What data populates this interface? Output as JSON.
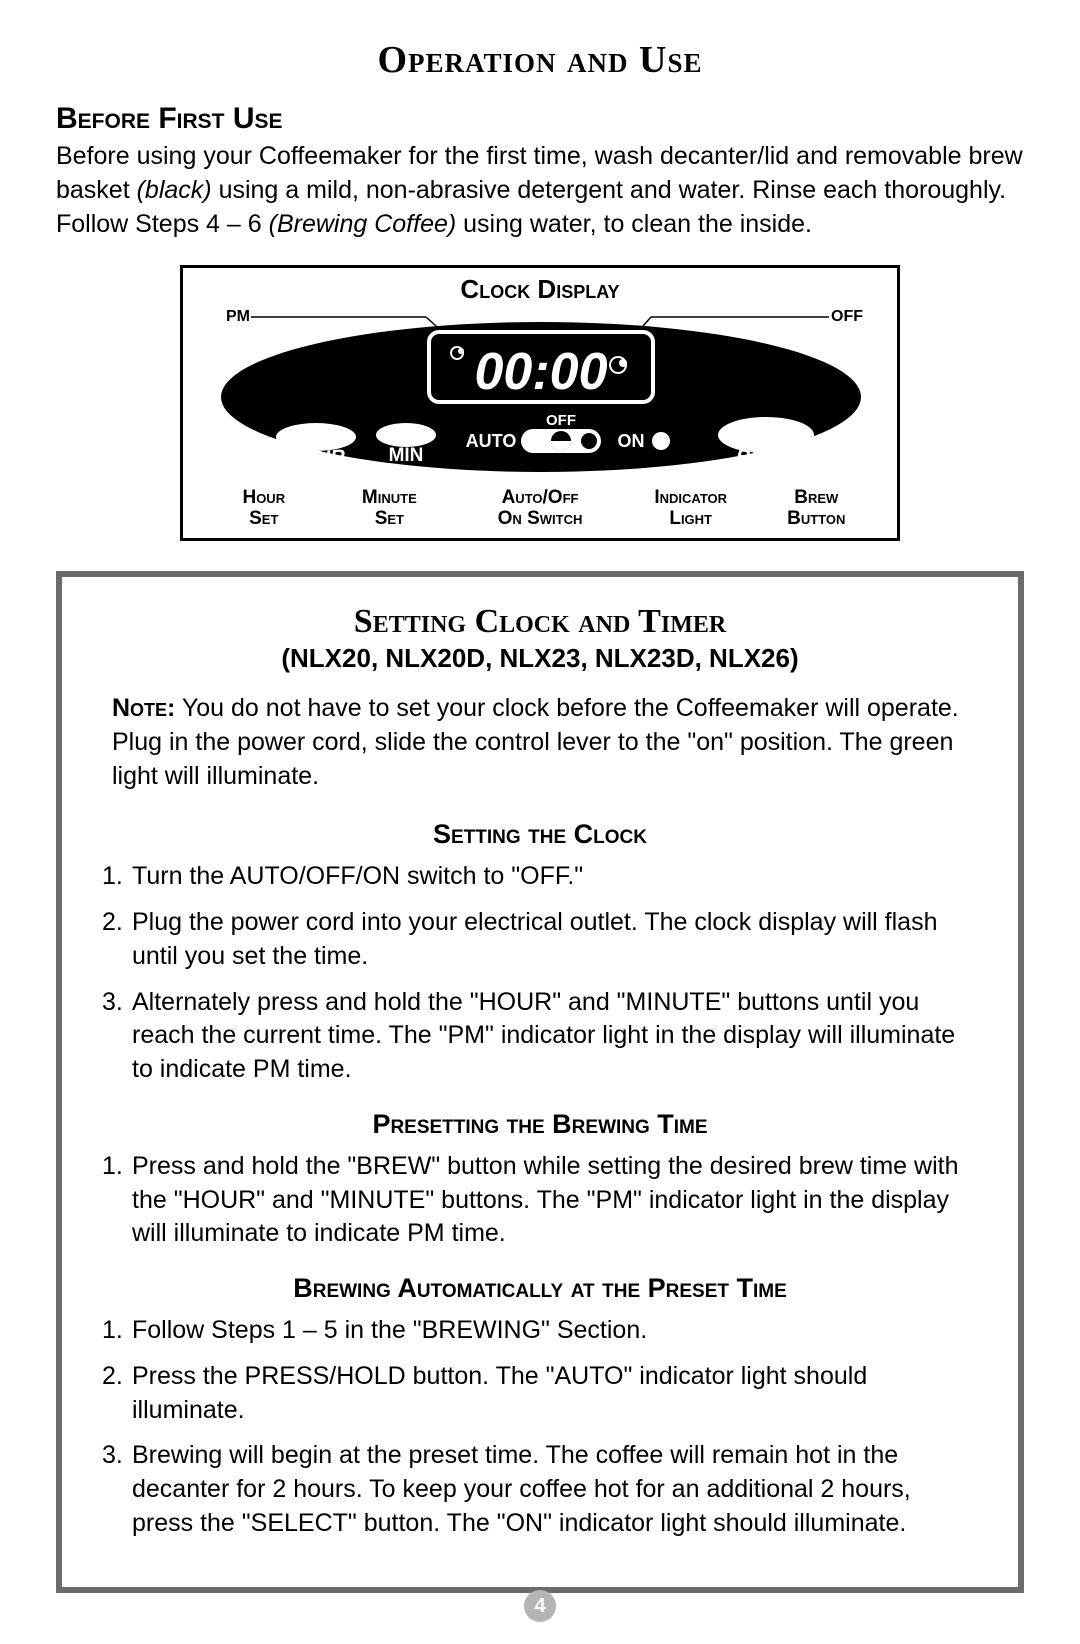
{
  "page_title": "Operation and Use",
  "before_first_use": {
    "heading": "Before First Use",
    "para_part1": "Before using your Coffeemaker for the first time, wash decanter/lid and removable brew basket ",
    "para_ital1": "(black)",
    "para_part2": " using a mild, non-abrasive detergent and water. Rinse each thoroughly. Follow Steps 4 – 6 ",
    "para_ital2": "(Brewing Coffee)",
    "para_part3": " using water, to clean the inside."
  },
  "clock_display": {
    "title": "Clock Display",
    "pm_label": "PM",
    "off_label": "OFF",
    "time_text": "00:00",
    "hour_btn": "HOUR",
    "min_btn": "MIN",
    "auto_btn": "AUTO",
    "switch_off": "OFF",
    "switch_on": "ON",
    "brew_btn": "BREW",
    "labels": {
      "hour_set": "Hour Set",
      "minute_set": "Minute Set",
      "auto_off": "Auto/Off On Switch",
      "indicator": "Indicator Light",
      "brew": "Brew Button"
    },
    "colors": {
      "black": "#000000",
      "white": "#ffffff"
    }
  },
  "setting_box": {
    "title": "Setting Clock and Timer",
    "models": "(NLX20, NLX20D, NLX23, NLX23D, NLX26)",
    "note_label": "Note:",
    "note_text": " You do not have to set your clock before the Coffeemaker will operate. Plug in the power cord, slide the control lever to the \"on\" position. The green light will illuminate.",
    "clock_heading": "Setting the Clock",
    "clock_steps": [
      "Turn the AUTO/OFF/ON switch to \"OFF.\"",
      "Plug the power cord into your electrical outlet. The clock display will flash until you set the time.",
      "Alternately press and hold the \"HOUR\" and \"MINUTE\" buttons until you reach the current time. The \"PM\" indicator light in the display will illuminate to indicate PM time."
    ],
    "preset_heading": "Presetting the Brewing Time",
    "preset_steps": [
      "Press and hold the \"BREW\" button while setting the desired brew time with the \"HOUR\" and \"MINUTE\" buttons. The \"PM\" indicator light in the display will illuminate to indicate PM time."
    ],
    "auto_heading": "Brewing Automatically at the Preset Time",
    "auto_steps": [
      "Follow Steps 1 – 5 in the \"BREWING\" Section.",
      "Press the PRESS/HOLD button. The \"AUTO\" indicator light should illuminate.",
      "Brewing will begin at the preset time. The coffee will remain hot in the decanter for 2 hours. To keep your coffee hot for an additional 2 hours, press the \"SELECT\" button. The \"ON\" indicator light should illuminate."
    ]
  },
  "page_number": "4"
}
